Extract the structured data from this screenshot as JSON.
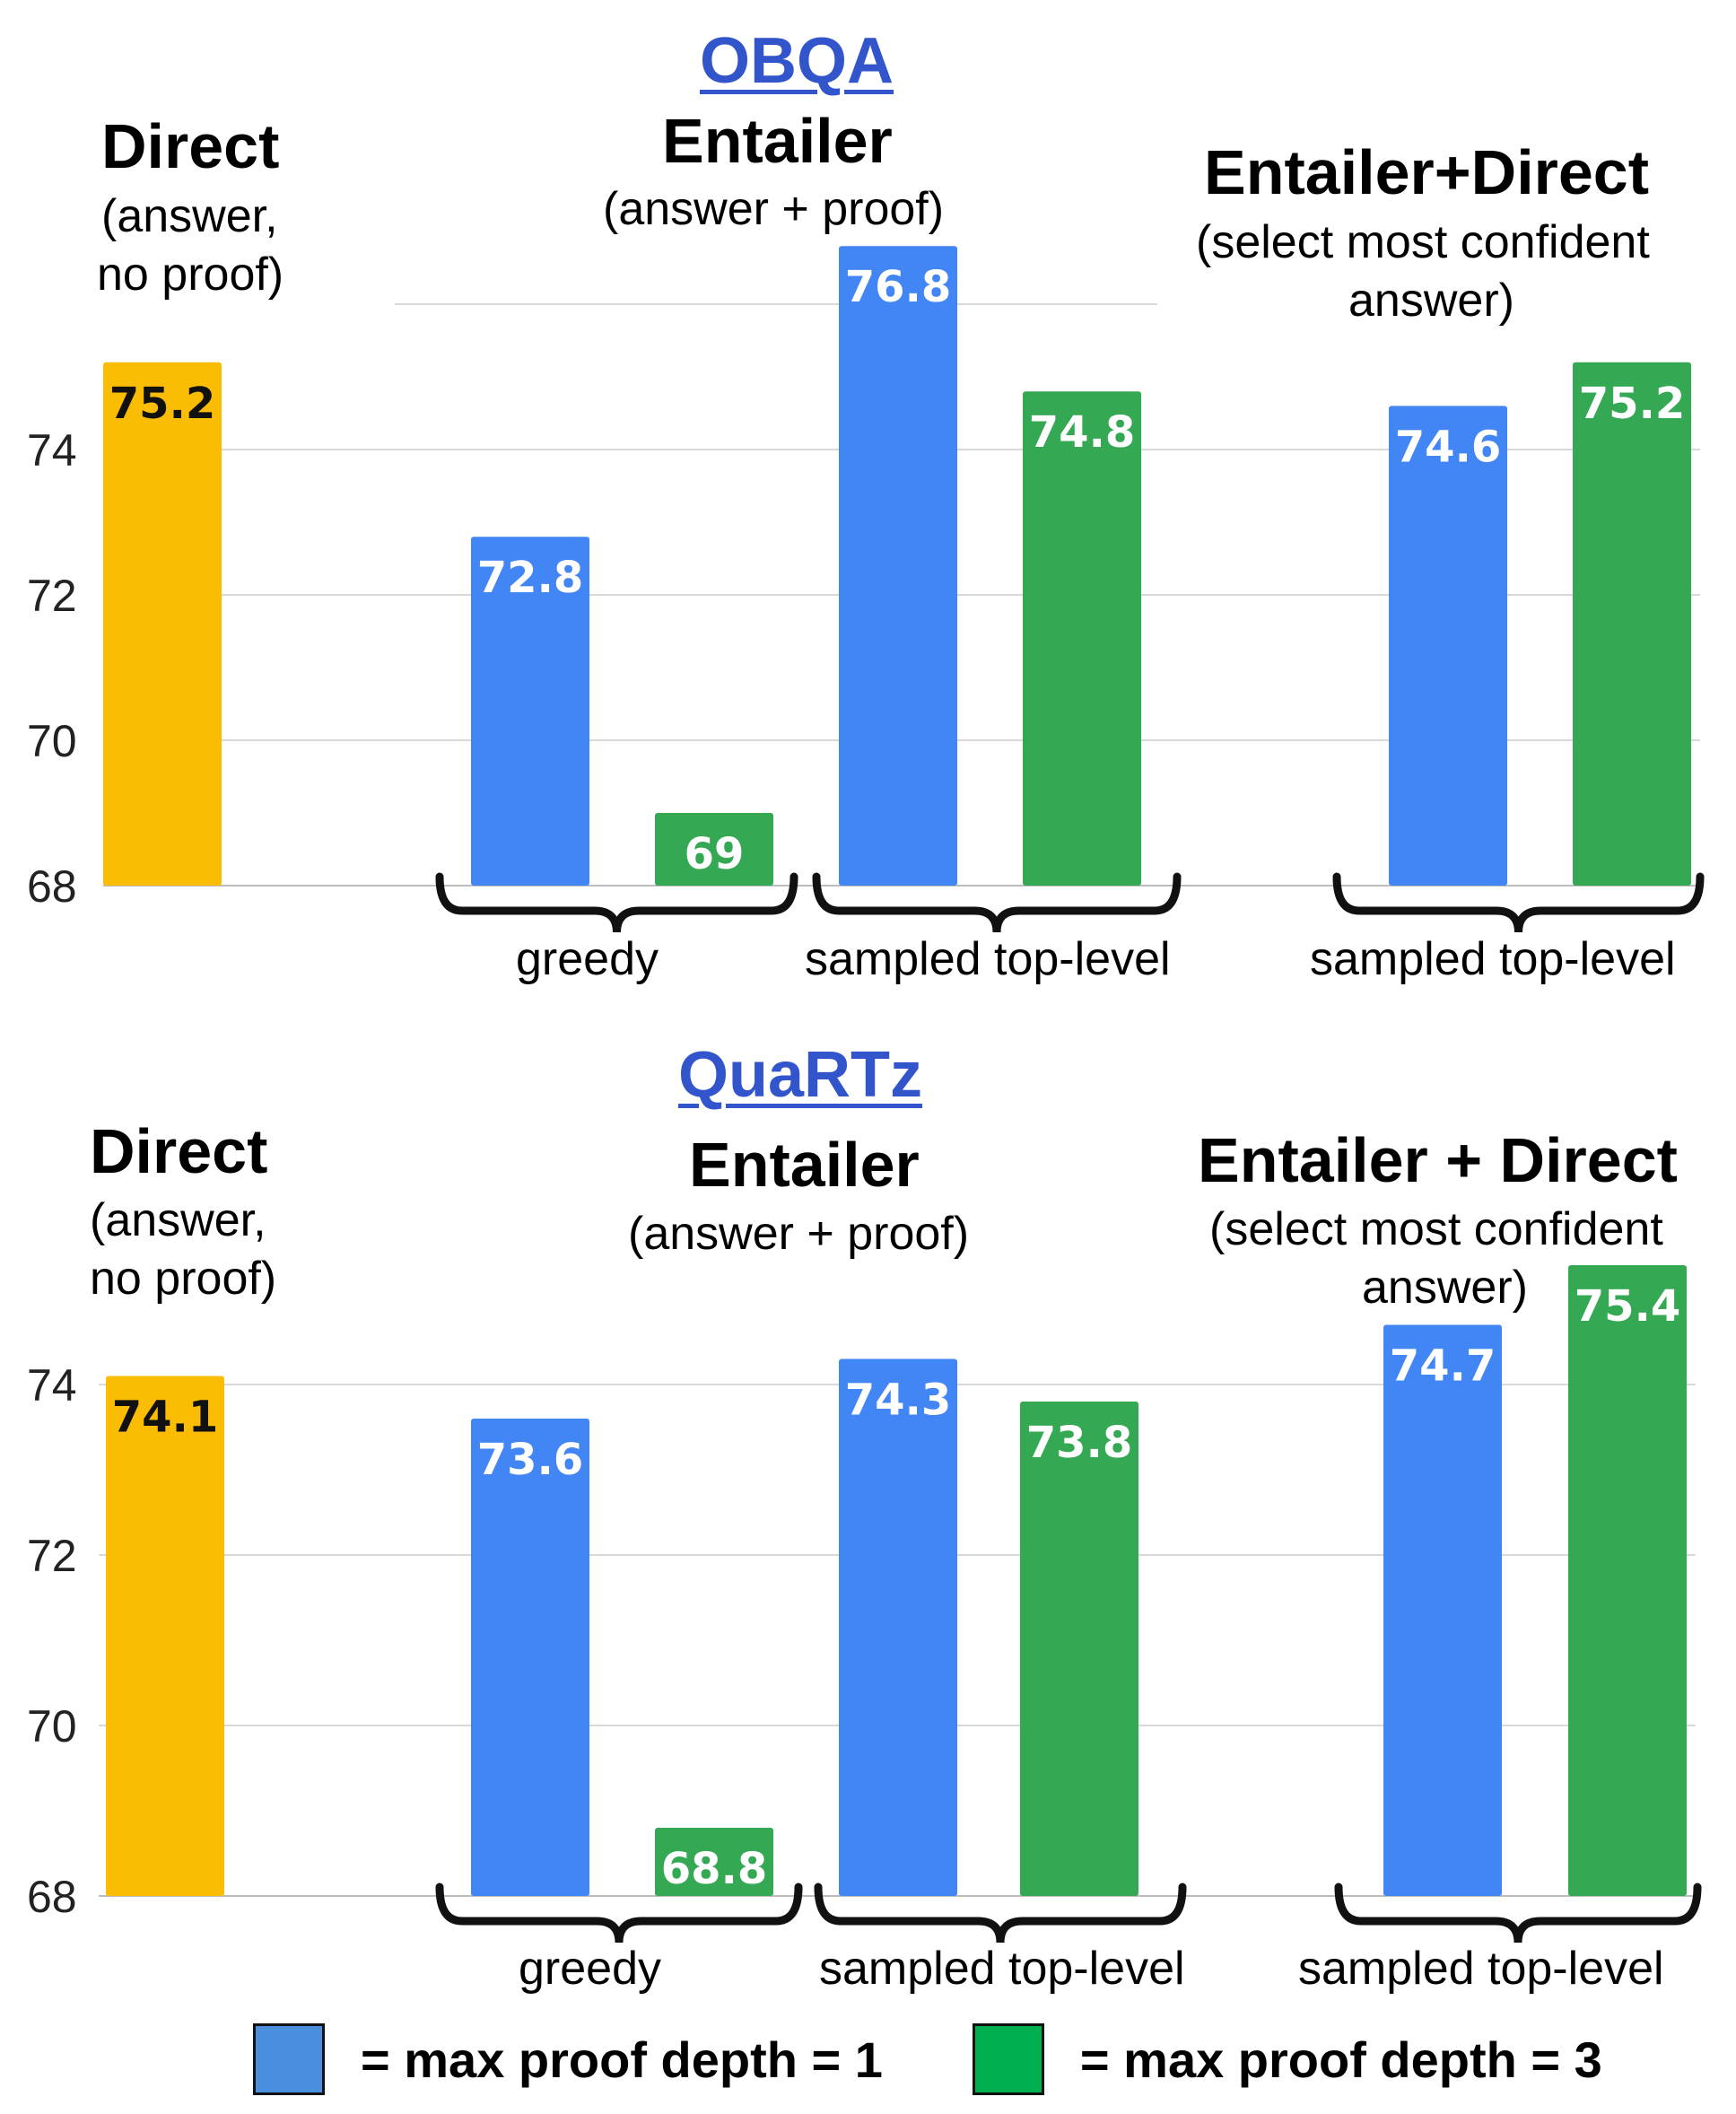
{
  "colors": {
    "direct": "#fbbc04",
    "depth1": "#4285f4",
    "depth3": "#34a853",
    "legend_depth1": "#4a8fdf",
    "legend_depth3": "#00b050",
    "grid": "#d9d9d9",
    "title": "#3355cc"
  },
  "panels": {
    "obqa": {
      "title": "OBQA",
      "direct_title": "Direct",
      "direct_sub1": "(answer,",
      "direct_sub2": "no proof)",
      "entailer_title": "Entailer",
      "entailer_sub": "(answer + proof)",
      "combo_title": "Entailer+Direct",
      "combo_sub1": "(select most confident",
      "combo_sub2": "answer)",
      "cat_greedy": "greedy",
      "cat_sampled": "sampled top-level",
      "cat_sampled_combo": "sampled top-level"
    },
    "quartz": {
      "title": "QuaRTz",
      "direct_title": "Direct",
      "direct_sub1": "(answer,",
      "direct_sub2": "no proof)",
      "entailer_title": "Entailer",
      "entailer_sub": "(answer + proof)",
      "combo_title": "Entailer + Direct",
      "combo_sub1": "(select most confident",
      "combo_sub2": "answer)",
      "cat_greedy": "greedy",
      "cat_sampled": "sampled top-level",
      "cat_sampled_combo": "sampled top-level"
    }
  },
  "legend": {
    "depth1": "= max proof depth = 1",
    "depth3": "= max proof depth = 3"
  },
  "chart_data": [
    {
      "type": "bar",
      "title": "OBQA",
      "ylim": [
        68,
        76.8
      ],
      "yticks": [
        68,
        70,
        72,
        74
      ],
      "grid": true,
      "bars": [
        {
          "group": "Direct",
          "category": "",
          "series": "direct",
          "value": 75.2,
          "label": "75.2"
        },
        {
          "group": "Entailer",
          "category": "greedy",
          "series": "max proof depth = 1",
          "value": 72.8,
          "label": "72.8"
        },
        {
          "group": "Entailer",
          "category": "greedy",
          "series": "max proof depth = 3",
          "value": 69,
          "label": "69"
        },
        {
          "group": "Entailer",
          "category": "sampled top-level",
          "series": "max proof depth = 1",
          "value": 76.8,
          "label": "76.8"
        },
        {
          "group": "Entailer",
          "category": "sampled top-level",
          "series": "max proof depth = 3",
          "value": 74.8,
          "label": "74.8"
        },
        {
          "group": "Entailer+Direct",
          "category": "sampled top-level",
          "series": "max proof depth = 1",
          "value": 74.6,
          "label": "74.6"
        },
        {
          "group": "Entailer+Direct",
          "category": "sampled top-level",
          "series": "max proof depth = 3",
          "value": 75.2,
          "label": "75.2"
        }
      ]
    },
    {
      "type": "bar",
      "title": "QuaRTz",
      "ylim": [
        68,
        75.4
      ],
      "yticks": [
        68,
        70,
        72,
        74
      ],
      "grid": true,
      "bars": [
        {
          "group": "Direct",
          "category": "",
          "series": "direct",
          "value": 74.1,
          "label": "74.1"
        },
        {
          "group": "Entailer",
          "category": "greedy",
          "series": "max proof depth = 1",
          "value": 73.6,
          "label": "73.6"
        },
        {
          "group": "Entailer",
          "category": "greedy",
          "series": "max proof depth = 3",
          "value": 68.8,
          "label": "68.8"
        },
        {
          "group": "Entailer",
          "category": "sampled top-level",
          "series": "max proof depth = 1",
          "value": 74.3,
          "label": "74.3"
        },
        {
          "group": "Entailer",
          "category": "sampled top-level",
          "series": "max proof depth = 3",
          "value": 73.8,
          "label": "73.8"
        },
        {
          "group": "Entailer + Direct",
          "category": "sampled top-level",
          "series": "max proof depth = 1",
          "value": 74.7,
          "label": "74.7"
        },
        {
          "group": "Entailer + Direct",
          "category": "sampled top-level",
          "series": "max proof depth = 3",
          "value": 75.4,
          "label": "75.4"
        }
      ]
    }
  ]
}
